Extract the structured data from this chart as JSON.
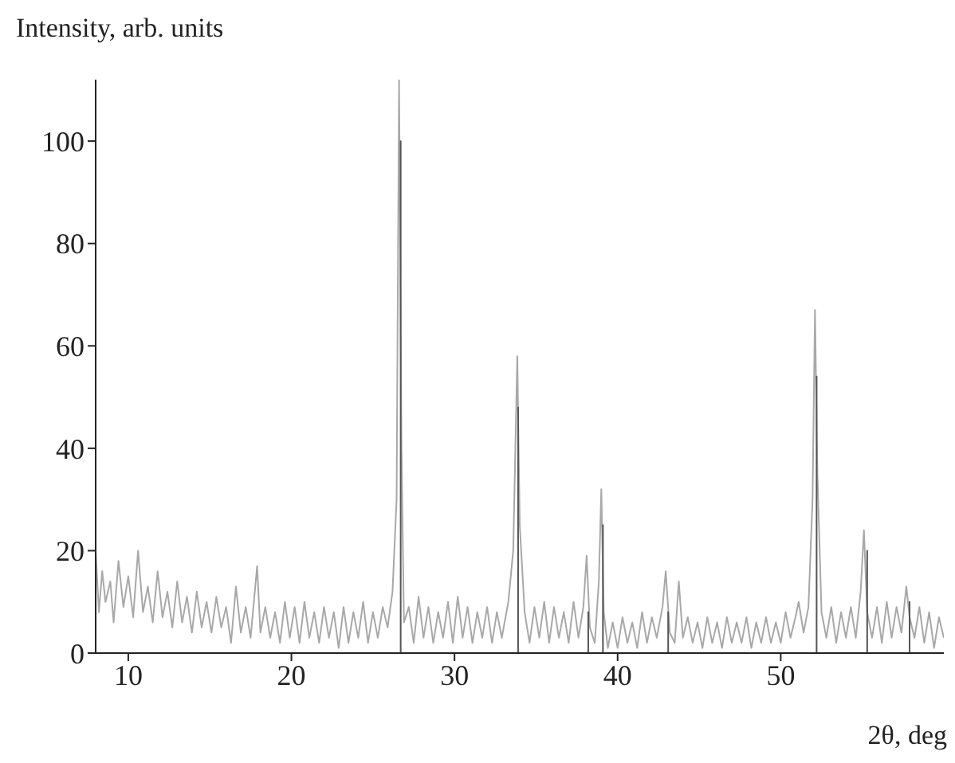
{
  "chart_data": {
    "type": "line",
    "ylabel": "Intensity, arb. units",
    "xlabel": "2θ, deg",
    "xlim": [
      8,
      60
    ],
    "xticks": [
      10,
      20,
      30,
      40,
      50
    ],
    "ylim": [
      0,
      112
    ],
    "yticks": [
      0,
      20,
      40,
      60,
      80,
      100
    ],
    "grid": false,
    "legend": false,
    "series": [
      {
        "color": "#a8a8a8",
        "x": [
          8.0,
          8.2,
          8.4,
          8.6,
          8.9,
          9.1,
          9.4,
          9.7,
          10.0,
          10.3,
          10.6,
          10.9,
          11.2,
          11.5,
          11.8,
          12.1,
          12.4,
          12.7,
          13.0,
          13.3,
          13.6,
          13.9,
          14.2,
          14.5,
          14.8,
          15.1,
          15.4,
          15.7,
          16.0,
          16.3,
          16.6,
          16.9,
          17.2,
          17.5,
          17.9,
          18.1,
          18.4,
          18.7,
          19.0,
          19.3,
          19.6,
          19.9,
          20.2,
          20.5,
          20.8,
          21.1,
          21.4,
          21.7,
          22.0,
          22.3,
          22.6,
          22.9,
          23.2,
          23.5,
          23.8,
          24.1,
          24.4,
          24.7,
          25.0,
          25.3,
          25.6,
          25.9,
          26.2,
          26.45,
          26.6,
          26.75,
          26.9,
          27.2,
          27.5,
          27.8,
          28.1,
          28.4,
          28.7,
          29.0,
          29.3,
          29.6,
          29.9,
          30.2,
          30.5,
          30.8,
          31.1,
          31.4,
          31.7,
          32.0,
          32.3,
          32.6,
          32.9,
          33.3,
          33.6,
          33.85,
          34.0,
          34.3,
          34.6,
          34.9,
          35.2,
          35.5,
          35.8,
          36.1,
          36.4,
          36.7,
          37.0,
          37.3,
          37.6,
          37.9,
          38.1,
          38.3,
          38.6,
          38.85,
          39.0,
          39.15,
          39.4,
          39.7,
          40.0,
          40.3,
          40.6,
          40.9,
          41.2,
          41.5,
          41.8,
          42.1,
          42.4,
          42.75,
          42.95,
          43.2,
          43.5,
          43.75,
          44.0,
          44.3,
          44.6,
          44.9,
          45.2,
          45.5,
          45.8,
          46.1,
          46.4,
          46.7,
          47.0,
          47.3,
          47.6,
          47.9,
          48.2,
          48.5,
          48.8,
          49.1,
          49.4,
          49.7,
          50.0,
          50.3,
          50.6,
          50.9,
          51.1,
          51.4,
          51.7,
          51.95,
          52.1,
          52.25,
          52.5,
          52.8,
          53.1,
          53.4,
          53.7,
          54.0,
          54.3,
          54.6,
          54.9,
          55.1,
          55.3,
          55.6,
          55.9,
          56.2,
          56.5,
          56.8,
          57.1,
          57.4,
          57.7,
          57.9,
          58.2,
          58.5,
          58.8,
          59.1,
          59.4,
          59.7,
          60.0
        ],
        "values": [
          20,
          8,
          16,
          10,
          14,
          6,
          18,
          9,
          15,
          7,
          20,
          8,
          13,
          6,
          16,
          7,
          12,
          5,
          14,
          6,
          11,
          4,
          12,
          5,
          10,
          4,
          11,
          5,
          9,
          2,
          13,
          4,
          9,
          3,
          17,
          4,
          9,
          3,
          8,
          2,
          10,
          3,
          9,
          2,
          10,
          3,
          8,
          2,
          9,
          3,
          8,
          1,
          9,
          2,
          8,
          3,
          10,
          2,
          8,
          3,
          9,
          5,
          12,
          30,
          112,
          40,
          6,
          9,
          2,
          11,
          3,
          9,
          2,
          8,
          3,
          10,
          2,
          11,
          3,
          9,
          2,
          8,
          3,
          9,
          2,
          8,
          3,
          10,
          20,
          58,
          25,
          8,
          2,
          9,
          3,
          10,
          2,
          9,
          3,
          8,
          2,
          10,
          3,
          9,
          19,
          5,
          2,
          14,
          32,
          8,
          1,
          6,
          1,
          7,
          2,
          6,
          1,
          8,
          2,
          7,
          3,
          9,
          16,
          4,
          2,
          14,
          3,
          7,
          2,
          6,
          1,
          7,
          2,
          6,
          1,
          7,
          2,
          6,
          2,
          7,
          1,
          6,
          2,
          7,
          2,
          6,
          2,
          8,
          3,
          7,
          10,
          4,
          9,
          30,
          67,
          35,
          8,
          3,
          9,
          2,
          8,
          3,
          9,
          3,
          12,
          24,
          8,
          3,
          9,
          2,
          10,
          3,
          9,
          4,
          13,
          7,
          3,
          9,
          2,
          8,
          1,
          7,
          3
        ]
      },
      {
        "color": "#555555",
        "x": [
          26.7,
          26.7,
          26.7,
          33.9,
          33.9,
          33.9,
          38.2,
          38.2,
          38.2,
          39.1,
          39.1,
          39.1,
          43.1,
          43.1,
          43.1,
          52.2,
          52.2,
          52.2,
          55.3,
          55.3,
          55.3,
          57.9,
          57.9,
          57.9
        ],
        "values": [
          0,
          100,
          0,
          0,
          48,
          0,
          0,
          8,
          0,
          0,
          25,
          0,
          0,
          8,
          0,
          0,
          54,
          0,
          0,
          20,
          0,
          0,
          10,
          0
        ]
      }
    ]
  }
}
